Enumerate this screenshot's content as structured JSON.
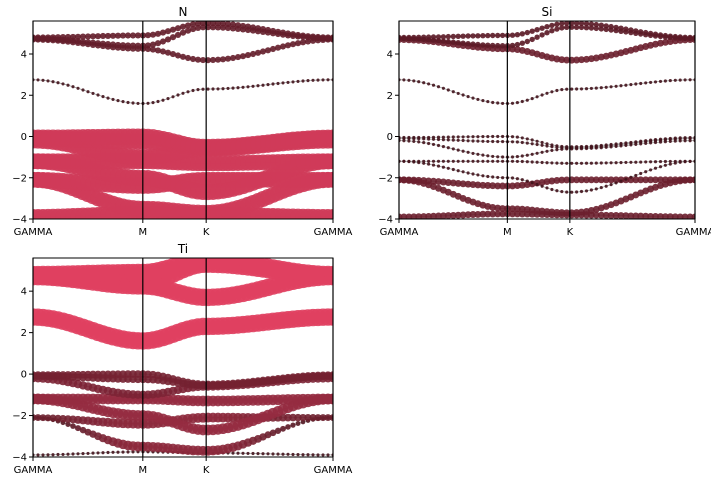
{
  "chart_data": [
    {
      "type": "scatter",
      "title": "N",
      "xticks": [
        "GAMMA",
        "M",
        "K",
        "GAMMA"
      ],
      "kpath": [
        0,
        1,
        1.577,
        2.732
      ],
      "ylim": [
        -4,
        5.6
      ],
      "yticks": [
        -4,
        -2,
        0,
        2,
        4
      ],
      "grid": false,
      "projection": "N",
      "bands": [
        {
          "name": "b1",
          "values": [
            -3.9,
            -3.75,
            -3.8,
            -3.9
          ],
          "weight": [
            0.9,
            0.9,
            0.9,
            0.9
          ]
        },
        {
          "name": "b2",
          "values": [
            -2.1,
            -3.5,
            -3.7,
            -2.1
          ],
          "weight": [
            0.9,
            0.9,
            0.9,
            0.9
          ]
        },
        {
          "name": "b3",
          "values": [
            -2.1,
            -2.4,
            -2.1,
            -2.1
          ],
          "weight": [
            0.9,
            0.9,
            0.9,
            0.9
          ]
        },
        {
          "name": "b4",
          "values": [
            -1.2,
            -2.0,
            -2.7,
            -1.2
          ],
          "weight": [
            0.9,
            0.9,
            0.9,
            0.9
          ]
        },
        {
          "name": "b5",
          "values": [
            -1.2,
            -1.2,
            -1.3,
            -1.2
          ],
          "weight": [
            0.9,
            0.9,
            0.9,
            0.9
          ]
        },
        {
          "name": "b6",
          "values": [
            -0.2,
            -1.0,
            -0.6,
            -0.2
          ],
          "weight": [
            0.9,
            0.9,
            0.9,
            0.9
          ]
        },
        {
          "name": "b7",
          "values": [
            -0.1,
            -0.25,
            -0.55,
            -0.1
          ],
          "weight": [
            0.9,
            0.9,
            0.9,
            0.9
          ]
        },
        {
          "name": "b8",
          "values": [
            -0.05,
            0.0,
            -0.5,
            -0.05
          ],
          "weight": [
            0.9,
            0.9,
            0.9,
            0.9
          ]
        },
        {
          "name": "b9",
          "values": [
            2.75,
            1.6,
            2.3,
            2.75
          ],
          "weight": [
            0.05,
            0.05,
            0.05,
            0.05
          ]
        },
        {
          "name": "b10",
          "values": [
            4.7,
            4.25,
            3.7,
            4.7
          ],
          "weight": [
            0.25,
            0.25,
            0.25,
            0.25
          ]
        },
        {
          "name": "b11",
          "values": [
            4.75,
            4.4,
            5.3,
            4.75
          ],
          "weight": [
            0.25,
            0.25,
            0.25,
            0.25
          ]
        },
        {
          "name": "b12",
          "values": [
            4.8,
            4.9,
            5.5,
            4.8
          ],
          "weight": [
            0.25,
            0.25,
            0.25,
            0.25
          ]
        }
      ]
    },
    {
      "type": "scatter",
      "title": "Si",
      "xticks": [
        "GAMMA",
        "M",
        "K",
        "GAMMA"
      ],
      "kpath": [
        0,
        1,
        1.577,
        2.732
      ],
      "ylim": [
        -4,
        5.6
      ],
      "yticks": [
        -4,
        -2,
        0,
        2,
        4
      ],
      "grid": false,
      "projection": "Si",
      "bands": [
        {
          "name": "b1",
          "values": [
            -3.9,
            -3.75,
            -3.8,
            -3.9
          ],
          "weight": [
            0.3,
            0.3,
            0.3,
            0.3
          ]
        },
        {
          "name": "b2",
          "values": [
            -2.1,
            -3.5,
            -3.7,
            -2.1
          ],
          "weight": [
            0.3,
            0.3,
            0.3,
            0.3
          ]
        },
        {
          "name": "b3",
          "values": [
            -2.1,
            -2.4,
            -2.1,
            -2.1
          ],
          "weight": [
            0.3,
            0.3,
            0.3,
            0.3
          ]
        },
        {
          "name": "b4",
          "values": [
            -1.2,
            -2.0,
            -2.7,
            -1.2
          ],
          "weight": [
            0.05,
            0.05,
            0.05,
            0.05
          ]
        },
        {
          "name": "b5",
          "values": [
            -1.2,
            -1.2,
            -1.3,
            -1.2
          ],
          "weight": [
            0.05,
            0.05,
            0.05,
            0.05
          ]
        },
        {
          "name": "b6",
          "values": [
            -0.2,
            -1.0,
            -0.6,
            -0.2
          ],
          "weight": [
            0.05,
            0.05,
            0.05,
            0.05
          ]
        },
        {
          "name": "b7",
          "values": [
            -0.1,
            -0.25,
            -0.55,
            -0.1
          ],
          "weight": [
            0.05,
            0.05,
            0.05,
            0.05
          ]
        },
        {
          "name": "b8",
          "values": [
            -0.05,
            0.0,
            -0.5,
            -0.05
          ],
          "weight": [
            0.05,
            0.05,
            0.05,
            0.05
          ]
        },
        {
          "name": "b9",
          "values": [
            2.75,
            1.6,
            2.3,
            2.75
          ],
          "weight": [
            0.05,
            0.05,
            0.05,
            0.05
          ]
        },
        {
          "name": "b10",
          "values": [
            4.7,
            4.25,
            3.7,
            4.7
          ],
          "weight": [
            0.3,
            0.3,
            0.3,
            0.3
          ]
        },
        {
          "name": "b11",
          "values": [
            4.75,
            4.4,
            5.3,
            4.75
          ],
          "weight": [
            0.2,
            0.2,
            0.2,
            0.2
          ]
        },
        {
          "name": "b12",
          "values": [
            4.8,
            4.9,
            5.5,
            4.8
          ],
          "weight": [
            0.2,
            0.2,
            0.2,
            0.2
          ]
        }
      ]
    },
    {
      "type": "scatter",
      "title": "Ti",
      "xticks": [
        "GAMMA",
        "M",
        "K",
        "GAMMA"
      ],
      "kpath": [
        0,
        1,
        1.577,
        2.732
      ],
      "ylim": [
        -4,
        5.6
      ],
      "yticks": [
        -4,
        -2,
        0,
        2,
        4
      ],
      "grid": false,
      "projection": "Ti",
      "bands": [
        {
          "name": "b1",
          "values": [
            -3.9,
            -3.75,
            -3.8,
            -3.9
          ],
          "weight": [
            0.05,
            0.05,
            0.05,
            0.05
          ]
        },
        {
          "name": "b2",
          "values": [
            -2.1,
            -3.5,
            -3.7,
            -2.1
          ],
          "weight": [
            0.1,
            0.5,
            0.5,
            0.1
          ]
        },
        {
          "name": "b3",
          "values": [
            -2.1,
            -2.4,
            -2.1,
            -2.1
          ],
          "weight": [
            0.3,
            0.5,
            0.5,
            0.3
          ]
        },
        {
          "name": "b4",
          "values": [
            -1.2,
            -2.0,
            -2.7,
            -1.2
          ],
          "weight": [
            0.55,
            0.55,
            0.55,
            0.55
          ]
        },
        {
          "name": "b5",
          "values": [
            -1.2,
            -1.2,
            -1.3,
            -1.2
          ],
          "weight": [
            0.55,
            0.55,
            0.55,
            0.55
          ]
        },
        {
          "name": "b6",
          "values": [
            -0.2,
            -1.0,
            -0.6,
            -0.2
          ],
          "weight": [
            0.4,
            0.4,
            0.4,
            0.4
          ]
        },
        {
          "name": "b7",
          "values": [
            -0.1,
            -0.25,
            -0.55,
            -0.1
          ],
          "weight": [
            0.35,
            0.35,
            0.35,
            0.35
          ]
        },
        {
          "name": "b8",
          "values": [
            -0.05,
            0.0,
            -0.5,
            -0.05
          ],
          "weight": [
            0.35,
            0.35,
            0.35,
            0.35
          ]
        },
        {
          "name": "b9",
          "values": [
            2.75,
            1.6,
            2.3,
            2.75
          ],
          "weight": [
            1.0,
            1.0,
            1.0,
            1.0
          ]
        },
        {
          "name": "b10",
          "values": [
            4.7,
            4.25,
            3.7,
            4.7
          ],
          "weight": [
            1.0,
            1.0,
            1.0,
            1.0
          ]
        },
        {
          "name": "b11",
          "values": [
            4.75,
            4.4,
            5.3,
            4.75
          ],
          "weight": [
            1.0,
            1.0,
            1.0,
            1.0
          ]
        },
        {
          "name": "b12",
          "values": [
            4.8,
            4.9,
            5.5,
            4.8
          ],
          "weight": [
            1.0,
            1.0,
            1.0,
            1.0
          ]
        }
      ]
    }
  ],
  "colors": {
    "low_weight": "#3a1118",
    "high_weight": "#e04060",
    "band_line": "#9a9a9a",
    "kpoint_line": "#000000"
  }
}
